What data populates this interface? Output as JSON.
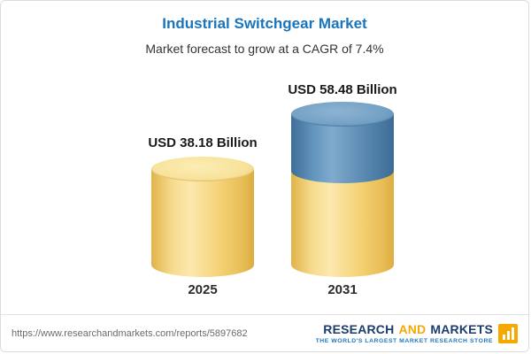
{
  "header": {
    "title": "Industrial Switchgear Market",
    "subtitle": "Market forecast to grow at a CAGR of 7.4%"
  },
  "chart_data": {
    "type": "bar",
    "categories": [
      "2025",
      "2031"
    ],
    "values": [
      38.18,
      58.48
    ],
    "value_labels": [
      "USD 38.18 Billion",
      "USD 58.48 Billion"
    ],
    "unit": "USD Billion",
    "title": "Industrial Switchgear Market",
    "subtitle": "Market forecast to grow at a CAGR of 7.4%",
    "cagr": "7.4%",
    "stacked_visual_2031": {
      "base_segment": 38.18,
      "growth_segment": 20.3
    },
    "legend": "none",
    "grid": false,
    "axes": "none",
    "colors": {
      "base": "#F5D36F",
      "growth": "#5D8CB4",
      "title": "#1B75BC"
    }
  },
  "footer": {
    "url": "https://www.researchandmarkets.com/reports/5897682",
    "logo": {
      "research": "RESEARCH",
      "and": "AND",
      "markets": "MARKETS",
      "tagline": "THE WORLD'S LARGEST MARKET RESEARCH STORE"
    }
  }
}
